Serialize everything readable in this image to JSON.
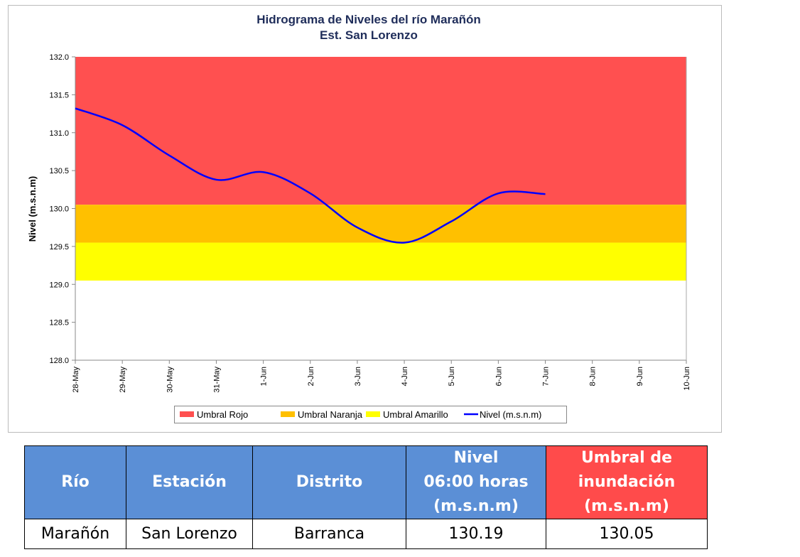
{
  "chart_data": {
    "type": "line",
    "title": "Hidrograma de Niveles del río Marañón",
    "subtitle": "Est. San Lorenzo",
    "y_label": "Nivel (m.s.n.m)",
    "categories": [
      "28-May",
      "29-May",
      "30-May",
      "31-May",
      "1-Jun",
      "2-Jun",
      "3-Jun",
      "4-Jun",
      "5-Jun",
      "6-Jun",
      "7-Jun",
      "8-Jun",
      "9-Jun",
      "10-Jun"
    ],
    "bands": [
      {
        "name": "Umbral Rojo",
        "color": "#ff5050",
        "from": 130.05,
        "to": 132.0
      },
      {
        "name": "Umbral Naranja",
        "color": "#ffc000",
        "from": 129.55,
        "to": 130.05
      },
      {
        "name": "Umbral Amarillo",
        "color": "#ffff00",
        "from": 129.05,
        "to": 129.55
      }
    ],
    "series": [
      {
        "name": "Nivel (m.s.n.m)",
        "color": "#0000ff",
        "values": [
          131.32,
          131.1,
          130.7,
          130.38,
          130.48,
          130.2,
          129.75,
          129.55,
          129.83,
          130.2,
          130.19,
          null,
          null,
          null
        ]
      }
    ],
    "ylim": [
      128,
      132
    ],
    "yticks": [
      {
        "value": 128,
        "label": "128.0"
      },
      {
        "value": 128.5,
        "label": "128.5"
      },
      {
        "value": 129,
        "label": "129.0"
      },
      {
        "value": 129.5,
        "label": "129.5"
      },
      {
        "value": 130,
        "label": "130.0"
      },
      {
        "value": 130.5,
        "label": "130.5"
      },
      {
        "value": 131,
        "label": "131.0"
      },
      {
        "value": 131.5,
        "label": "131.5"
      },
      {
        "value": 132,
        "label": "132.0"
      }
    ],
    "legend": "bottom"
  },
  "table": {
    "header": [
      "Río",
      "Estación",
      "Distrito",
      "Nivel\n06:00 horas\n(m.s.n.m)",
      "Umbral de\ninundación\n(m.s.n.m)"
    ],
    "rows": [
      [
        "Marañón",
        "San Lorenzo",
        "Barranca",
        130.19,
        130.05
      ]
    ]
  }
}
